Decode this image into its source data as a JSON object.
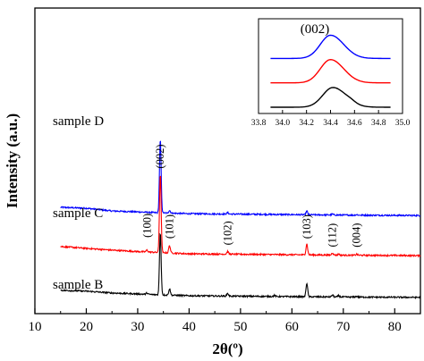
{
  "chart_data": {
    "type": "line",
    "xlabel": "2θ(º)",
    "ylabel": "Intensity (a.u.)",
    "xlim": [
      10,
      85
    ],
    "x_ticks": [
      10,
      20,
      30,
      40,
      50,
      60,
      70,
      80
    ],
    "x_range_data": [
      15,
      85
    ],
    "series": [
      {
        "name": "sample D",
        "color": "#0000ff",
        "offset": 90,
        "baseline": [
          [
            15,
            9
          ],
          [
            20,
            8
          ],
          [
            25,
            5
          ],
          [
            30,
            4
          ],
          [
            34,
            3
          ],
          [
            40,
            2
          ],
          [
            50,
            1.5
          ],
          [
            60,
            1
          ],
          [
            70,
            0.5
          ],
          [
            85,
            0
          ]
        ],
        "peaks": [
          [
            34.4,
            80
          ],
          [
            36.2,
            3
          ],
          [
            47.5,
            1.5
          ],
          [
            62.9,
            4
          ],
          [
            67.9,
            1
          ],
          [
            72.6,
            0.6
          ]
        ]
      },
      {
        "name": "sample C",
        "color": "#ff0000",
        "offset": 46,
        "baseline": [
          [
            15,
            10
          ],
          [
            20,
            8
          ],
          [
            25,
            6
          ],
          [
            30,
            4.5
          ],
          [
            34,
            3.5
          ],
          [
            40,
            2
          ],
          [
            50,
            1.5
          ],
          [
            60,
            1
          ],
          [
            70,
            0.5
          ],
          [
            85,
            0
          ]
        ],
        "peaks": [
          [
            31.8,
            2
          ],
          [
            34.4,
            86
          ],
          [
            36.2,
            8
          ],
          [
            47.5,
            3
          ],
          [
            62.9,
            12
          ],
          [
            67.9,
            2.5
          ],
          [
            69.1,
            1.2
          ],
          [
            72.6,
            1.2
          ]
        ]
      },
      {
        "name": "sample B",
        "color": "#000000",
        "offset": 0,
        "baseline": [
          [
            15,
            8
          ],
          [
            20,
            7
          ],
          [
            25,
            5
          ],
          [
            30,
            4
          ],
          [
            34,
            3
          ],
          [
            40,
            2
          ],
          [
            50,
            1.5
          ],
          [
            60,
            1
          ],
          [
            70,
            0.6
          ],
          [
            85,
            0.2
          ]
        ],
        "peaks": [
          [
            31.8,
            1.5
          ],
          [
            34.4,
            68
          ],
          [
            36.2,
            7
          ],
          [
            47.5,
            3
          ],
          [
            56.6,
            1.2
          ],
          [
            62.9,
            15
          ],
          [
            67.9,
            2.2
          ],
          [
            69.1,
            1.5
          ],
          [
            72.6,
            1
          ]
        ]
      }
    ],
    "peak_labels": [
      {
        "text": "(100)",
        "x": 31.8
      },
      {
        "text": "(002)",
        "x": 34.4
      },
      {
        "text": "(101)",
        "x": 36.2
      },
      {
        "text": "(102)",
        "x": 47.5
      },
      {
        "text": "(103)",
        "x": 62.9
      },
      {
        "text": "(112)",
        "x": 67.9
      },
      {
        "text": "(004)",
        "x": 72.6
      }
    ],
    "inset": {
      "title": "(002)",
      "xlim": [
        33.8,
        35.0
      ],
      "x_ticks": [
        "33.8",
        "34.0",
        "34.2",
        "34.4",
        "34.6",
        "34.8",
        "35.0"
      ],
      "x_range_data": [
        33.9,
        34.9
      ],
      "peak_center": 34.42,
      "series": [
        {
          "name": "sample D",
          "color": "#0000ff",
          "offset": 2.1,
          "height": 1.0
        },
        {
          "name": "sample C",
          "color": "#ff0000",
          "offset": 1.05,
          "height": 1.0
        },
        {
          "name": "sample B",
          "color": "#000000",
          "offset": 0,
          "height": 0.85
        }
      ]
    }
  }
}
